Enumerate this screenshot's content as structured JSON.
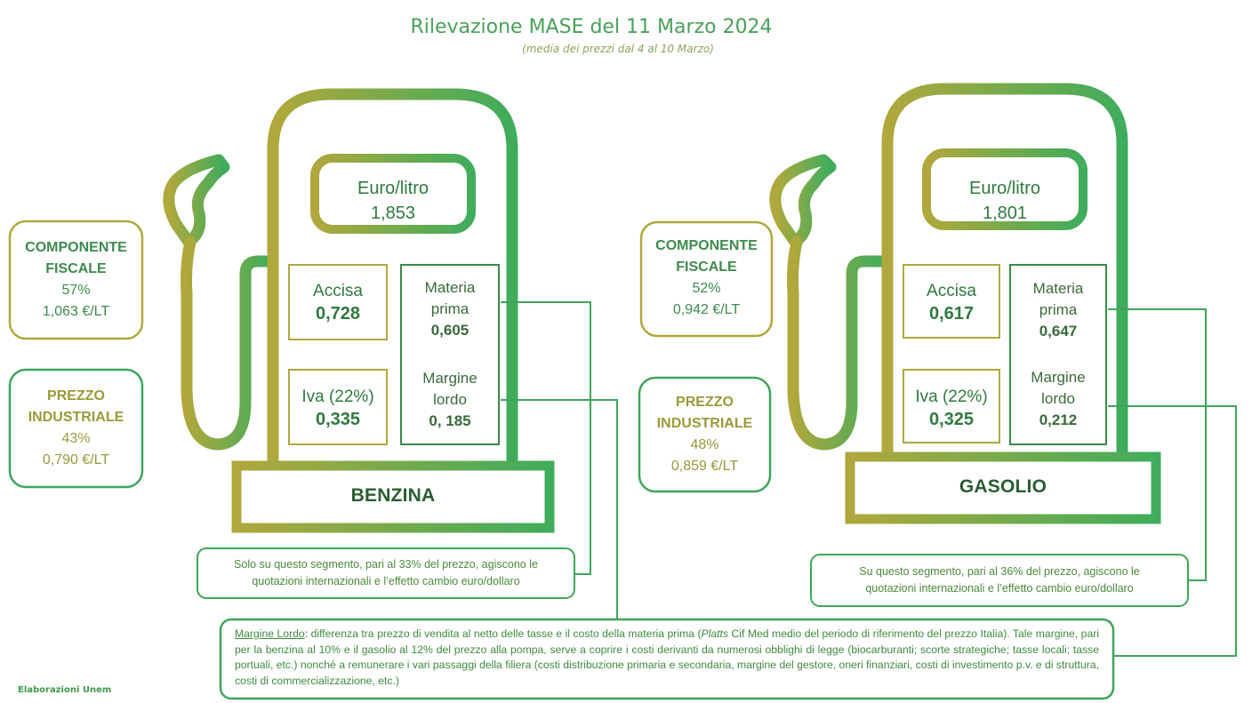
{
  "title": "Rilevazione MASE del 11 Marzo 2024",
  "subtitle": "(media dei prezzi dal 4 al 10 Marzo)",
  "credit": "Elaborazioni Unem",
  "colors": {
    "dark_green": "#2f7a3f",
    "green": "#4aa05a",
    "olive": "#a6a83c"
  },
  "benzina": {
    "label": "BENZINA",
    "price_label": "Euro/litro",
    "price_value": "1,853",
    "componente_fiscale": {
      "line1": "COMPONENTE",
      "line2": "FISCALE",
      "pct": "57%",
      "value": "1,063 €/LT"
    },
    "prezzo_industriale": {
      "line1": "PREZZO",
      "line2": "INDUSTRIALE",
      "pct": "43%",
      "value": "0,790 €/LT"
    },
    "accisa": {
      "label": "Accisa",
      "value": "0,728"
    },
    "iva": {
      "label": "Iva (22%)",
      "value": "0,335"
    },
    "materia_prima": {
      "line1": "Materia",
      "line2": "prima",
      "value": "0,605"
    },
    "margine_lordo": {
      "line1": "Margine",
      "line2": "lordo",
      "value": "0, 185"
    },
    "note_line1": "Solo su questo segmento, pari al 33% del prezzo, agiscono le",
    "note_line2": "quotazioni internazionali e l’effetto cambio euro/dollaro"
  },
  "gasolio": {
    "label": "GASOLIO",
    "price_label": "Euro/litro",
    "price_value": "1,801",
    "componente_fiscale": {
      "line1": "COMPONENTE",
      "line2": "FISCALE",
      "pct": "52%",
      "value": "0,942 €/LT"
    },
    "prezzo_industriale": {
      "line1": "PREZZO",
      "line2": "INDUSTRIALE",
      "pct": "48%",
      "value": "0,859 €/LT"
    },
    "accisa": {
      "label": "Accisa",
      "value": "0,617"
    },
    "iva": {
      "label": "Iva (22%)",
      "value": "0,325"
    },
    "materia_prima": {
      "line1": "Materia",
      "line2": "prima",
      "value": "0,647"
    },
    "margine_lordo": {
      "line1": "Margine",
      "line2": "lordo",
      "value": "0,212"
    },
    "note_line1": "Su questo segmento, pari al 36% del prezzo, agiscono le",
    "note_line2": "quotazioni internazionali e l’effetto cambio euro/dollaro"
  },
  "footnote": {
    "term": "Margine Lordo",
    "text_a": ": differenza tra prezzo di vendita al netto delle tasse e il costo della materia prima (",
    "platts": "Platts",
    "text_b": " Cif Med medio del periodo di riferimento del prezzo Italia). Tale margine, pari per la benzina al 10% e il gasolio al 12% del prezzo alla pompa, serve a coprire i costi derivanti da numerosi obblighi di legge (biocarburanti; scorte strategiche; tasse locali; tasse portuali, etc.) nonché a remunerare i vari passaggi della filiera (costi distribuzione primaria e secondaria, margine del gestore, oneri finanziari, costi di investimento p.v. e di struttura, costi di commercializzazione, etc.)"
  }
}
